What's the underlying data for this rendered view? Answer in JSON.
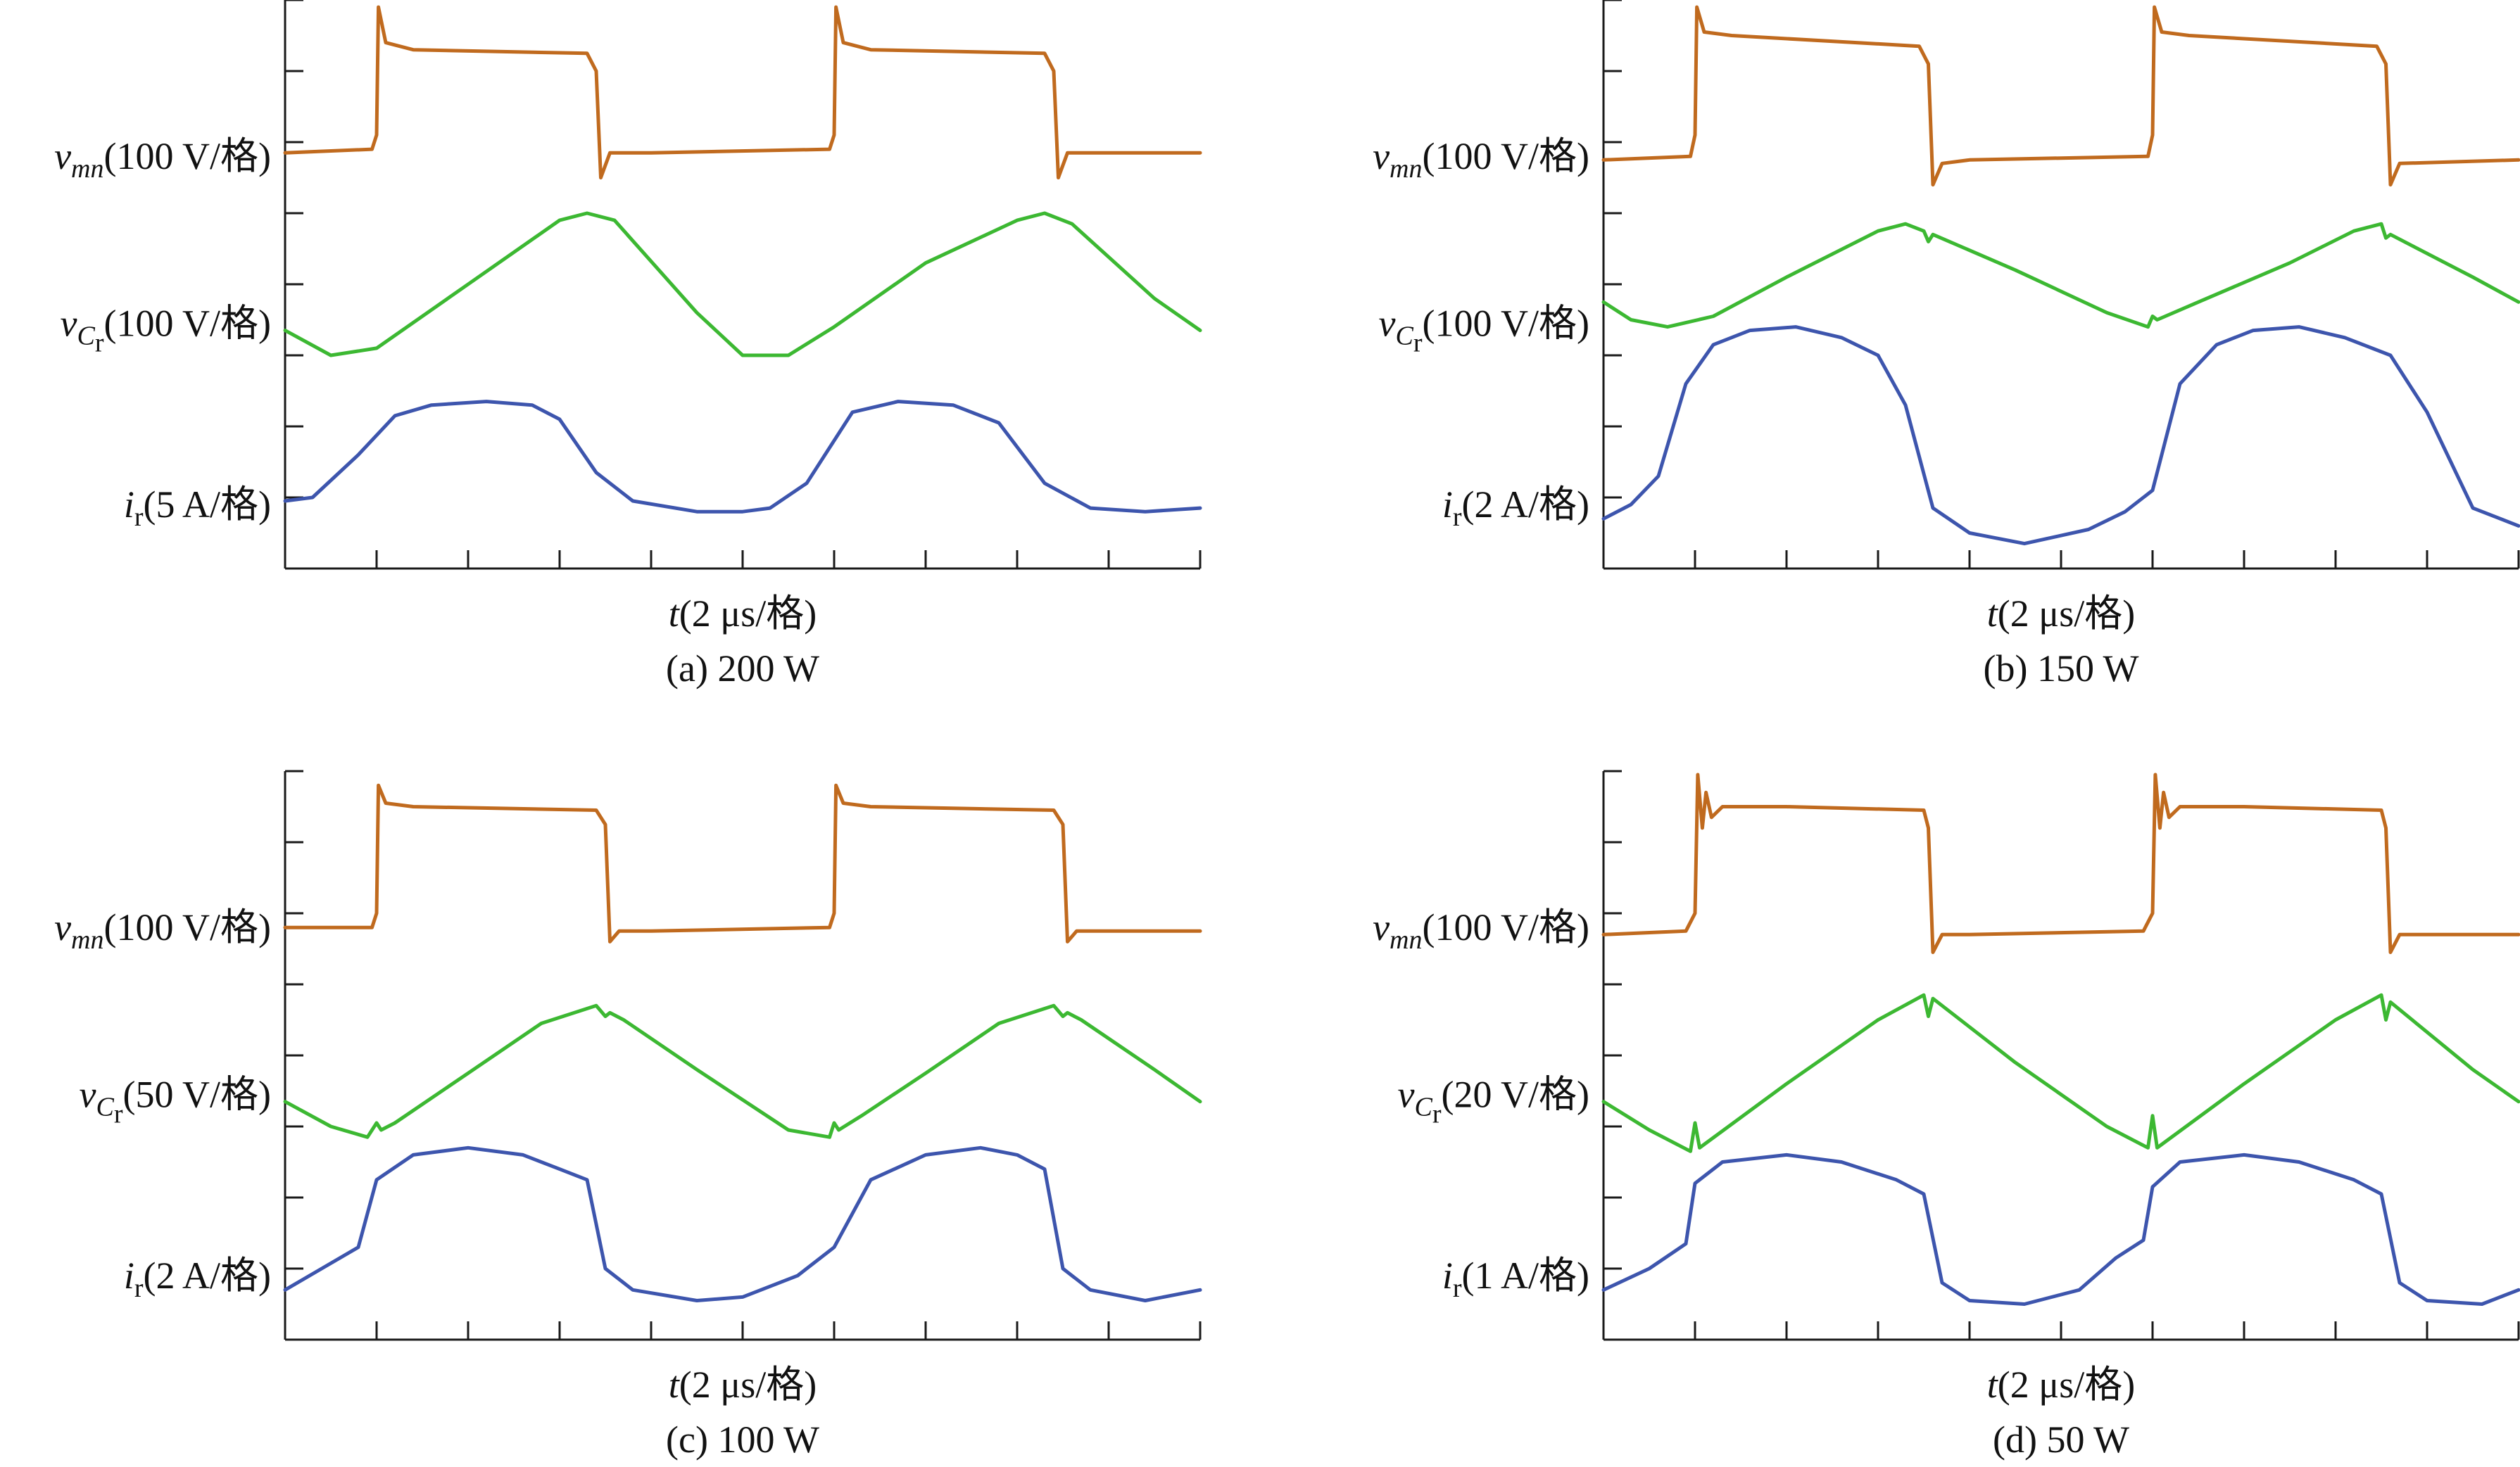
{
  "colors": {
    "vmn": "#c06a1e",
    "vcr": "#3cb832",
    "ir": "#3d55ad"
  },
  "panels": [
    {
      "caption": "(a) 200 W",
      "xlabel": "t(2 μs/格)",
      "labels": {
        "vmn": {
          "sym": "v",
          "sub": "mn",
          "scale": "(100 V/格)"
        },
        "vcr": {
          "sym": "v",
          "sub": "C",
          "subsub": "r",
          "scale": "(100 V/格)"
        },
        "ir": {
          "sym": "i",
          "sub": "r",
          "scale": "(5 A/格)"
        }
      }
    },
    {
      "caption": "(b) 150 W",
      "xlabel": "t(2 μs/格)",
      "labels": {
        "vmn": {
          "sym": "v",
          "sub": "mn",
          "scale": "(100 V/格)"
        },
        "vcr": {
          "sym": "v",
          "sub": "C",
          "subsub": "r",
          "scale": "(100 V/格)"
        },
        "ir": {
          "sym": "i",
          "sub": "r",
          "scale": "(2 A/格)"
        }
      }
    },
    {
      "caption": "(c) 100 W",
      "xlabel": "t(2 μs/格)",
      "labels": {
        "vmn": {
          "sym": "v",
          "sub": "mn",
          "scale": "(100 V/格)"
        },
        "vcr": {
          "sym": "v",
          "sub": "C",
          "subsub": "r",
          "scale": "(50 V/格)"
        },
        "ir": {
          "sym": "i",
          "sub": "r",
          "scale": "(2 A/格)"
        }
      }
    },
    {
      "caption": "(d) 50 W",
      "xlabel": "t(2 μs/格)",
      "labels": {
        "vmn": {
          "sym": "v",
          "sub": "mn",
          "scale": "(100 V/格)"
        },
        "vcr": {
          "sym": "v",
          "sub": "C",
          "subsub": "r",
          "scale": "(20 V/格)"
        },
        "ir": {
          "sym": "i",
          "sub": "r",
          "scale": "(1 A/格)"
        }
      }
    }
  ],
  "chart_data": [
    {
      "type": "line",
      "title": "(a) 200 W",
      "xlabel": "t(2 μs/格)",
      "x_units": "divisions (2 μs/div)",
      "xlim": [
        0,
        10
      ],
      "ylim": [
        0,
        8
      ],
      "series": [
        {
          "name": "vmn(100 V/格)",
          "x": [
            0,
            0.95,
            1.0,
            1.02,
            1.1,
            1.4,
            3.3,
            3.4,
            3.45,
            3.55,
            4.0,
            5.95,
            6.0,
            6.02,
            6.1,
            6.4,
            8.3,
            8.4,
            8.45,
            8.55,
            10.0
          ],
          "y": [
            5.85,
            5.9,
            6.1,
            7.9,
            7.4,
            7.3,
            7.25,
            7.0,
            5.5,
            5.85,
            5.85,
            5.9,
            6.1,
            7.9,
            7.4,
            7.3,
            7.25,
            7.0,
            5.5,
            5.85,
            5.85
          ]
        },
        {
          "name": "vCr(100 V/格)",
          "x": [
            0,
            0.5,
            1.0,
            2.0,
            3.0,
            3.3,
            3.6,
            4.5,
            5.0,
            5.5,
            6.0,
            7.0,
            8.0,
            8.3,
            8.6,
            9.5,
            10.0
          ],
          "y": [
            3.35,
            3.0,
            3.1,
            4.0,
            4.9,
            5.0,
            4.9,
            3.6,
            3.0,
            3.0,
            3.4,
            4.3,
            4.9,
            5.0,
            4.85,
            3.8,
            3.35
          ]
        },
        {
          "name": "ir(5 A/格)",
          "x": [
            0,
            0.3,
            0.8,
            1.2,
            1.6,
            2.2,
            2.7,
            3.0,
            3.4,
            3.8,
            4.5,
            5.0,
            5.3,
            5.7,
            6.2,
            6.7,
            7.3,
            7.8,
            8.3,
            8.8,
            9.4,
            10.0
          ],
          "y": [
            0.95,
            1.0,
            1.6,
            2.15,
            2.3,
            2.35,
            2.3,
            2.1,
            1.35,
            0.95,
            0.8,
            0.8,
            0.85,
            1.2,
            2.2,
            2.35,
            2.3,
            2.05,
            1.2,
            0.85,
            0.8,
            0.85
          ]
        }
      ]
    },
    {
      "type": "line",
      "title": "(b) 150 W",
      "xlabel": "t(2 μs/格)",
      "x_units": "divisions (2 μs/div)",
      "xlim": [
        0,
        10
      ],
      "ylim": [
        0,
        8
      ],
      "series": [
        {
          "name": "vmn(100 V/格)",
          "x": [
            0,
            0.95,
            1.0,
            1.02,
            1.1,
            1.4,
            3.45,
            3.55,
            3.6,
            3.7,
            4.0,
            5.95,
            6.0,
            6.02,
            6.1,
            6.4,
            8.45,
            8.55,
            8.6,
            8.7,
            10.0
          ],
          "y": [
            5.75,
            5.8,
            6.1,
            7.9,
            7.55,
            7.5,
            7.35,
            7.1,
            5.4,
            5.7,
            5.75,
            5.8,
            6.1,
            7.9,
            7.55,
            7.5,
            7.35,
            7.1,
            5.4,
            5.7,
            5.75
          ]
        },
        {
          "name": "vCr(100 V/格)",
          "x": [
            0,
            0.3,
            0.7,
            1.2,
            2.0,
            3.0,
            3.3,
            3.5,
            3.55,
            3.6,
            4.5,
            5.5,
            5.95,
            6.0,
            6.05,
            6.5,
            7.5,
            8.2,
            8.5,
            8.55,
            8.6,
            9.5,
            10.0
          ],
          "y": [
            3.75,
            3.5,
            3.4,
            3.55,
            4.1,
            4.75,
            4.85,
            4.75,
            4.6,
            4.7,
            4.2,
            3.6,
            3.4,
            3.55,
            3.5,
            3.75,
            4.3,
            4.75,
            4.85,
            4.65,
            4.7,
            4.1,
            3.75
          ]
        },
        {
          "name": "ir(2 A/格)",
          "x": [
            0,
            0.3,
            0.6,
            0.9,
            1.2,
            1.6,
            2.1,
            2.6,
            3.0,
            3.3,
            3.6,
            4.0,
            4.6,
            5.3,
            5.7,
            6.0,
            6.3,
            6.7,
            7.1,
            7.6,
            8.1,
            8.6,
            9.0,
            9.5,
            10.0
          ],
          "y": [
            0.7,
            0.9,
            1.3,
            2.6,
            3.15,
            3.35,
            3.4,
            3.25,
            3.0,
            2.3,
            0.85,
            0.5,
            0.35,
            0.55,
            0.8,
            1.1,
            2.6,
            3.15,
            3.35,
            3.4,
            3.25,
            3.0,
            2.2,
            0.85,
            0.6
          ]
        }
      ]
    },
    {
      "type": "line",
      "title": "(c) 100 W",
      "xlabel": "t(2 μs/格)",
      "x_units": "divisions (2 μs/div)",
      "xlim": [
        0,
        10
      ],
      "ylim": [
        0,
        8
      ],
      "series": [
        {
          "name": "vmn(100 V/格)",
          "x": [
            0,
            0.95,
            1.0,
            1.02,
            1.1,
            1.4,
            3.4,
            3.5,
            3.55,
            3.65,
            4.0,
            5.95,
            6.0,
            6.02,
            6.1,
            6.4,
            8.4,
            8.5,
            8.55,
            8.65,
            10.0
          ],
          "y": [
            5.8,
            5.8,
            6.0,
            7.8,
            7.55,
            7.5,
            7.45,
            7.25,
            5.6,
            5.75,
            5.75,
            5.8,
            6.0,
            7.8,
            7.55,
            7.5,
            7.45,
            7.25,
            5.6,
            5.75,
            5.75
          ]
        },
        {
          "name": "vCr(50 V/格)",
          "x": [
            0,
            0.5,
            0.9,
            1.0,
            1.05,
            1.2,
            2.0,
            2.8,
            3.4,
            3.5,
            3.55,
            3.7,
            4.5,
            5.5,
            5.95,
            6.0,
            6.05,
            6.3,
            7.0,
            7.8,
            8.4,
            8.5,
            8.55,
            8.7,
            9.5,
            10.0
          ],
          "y": [
            3.35,
            3.0,
            2.85,
            3.05,
            2.95,
            3.05,
            3.75,
            4.45,
            4.7,
            4.55,
            4.6,
            4.5,
            3.8,
            2.95,
            2.85,
            3.05,
            2.95,
            3.15,
            3.75,
            4.45,
            4.7,
            4.55,
            4.6,
            4.5,
            3.8,
            3.35
          ]
        },
        {
          "name": "ir(2 A/格)",
          "x": [
            0,
            0.4,
            0.8,
            1.0,
            1.4,
            2.0,
            2.6,
            3.0,
            3.3,
            3.5,
            3.8,
            4.5,
            5.0,
            5.6,
            6.0,
            6.4,
            7.0,
            7.6,
            8.0,
            8.3,
            8.5,
            8.8,
            9.4,
            10.0
          ],
          "y": [
            0.7,
            1.0,
            1.3,
            2.25,
            2.6,
            2.7,
            2.6,
            2.4,
            2.25,
            1.0,
            0.7,
            0.55,
            0.6,
            0.9,
            1.3,
            2.25,
            2.6,
            2.7,
            2.6,
            2.4,
            1.0,
            0.7,
            0.55,
            0.7
          ]
        }
      ]
    },
    {
      "type": "line",
      "title": "(d) 50 W",
      "xlabel": "t(2 μs/格)",
      "x_units": "divisions (2 μs/div)",
      "xlim": [
        0,
        10
      ],
      "ylim": [
        0,
        8
      ],
      "series": [
        {
          "name": "vmn(100 V/格)",
          "x": [
            0,
            0.9,
            1.0,
            1.03,
            1.08,
            1.12,
            1.18,
            1.3,
            2.0,
            3.5,
            3.55,
            3.6,
            3.7,
            4.0,
            5.9,
            6.0,
            6.03,
            6.08,
            6.12,
            6.18,
            6.3,
            7.0,
            8.5,
            8.55,
            8.6,
            8.7,
            10.0
          ],
          "y": [
            5.7,
            5.75,
            6.0,
            7.95,
            7.2,
            7.7,
            7.35,
            7.5,
            7.5,
            7.45,
            7.2,
            5.45,
            5.7,
            5.7,
            5.75,
            6.0,
            7.95,
            7.2,
            7.7,
            7.35,
            7.5,
            7.5,
            7.45,
            7.2,
            5.45,
            5.7,
            5.7
          ]
        },
        {
          "name": "vCr(20 V/格)",
          "x": [
            0,
            0.5,
            0.95,
            1.0,
            1.05,
            2.0,
            3.0,
            3.5,
            3.55,
            3.6,
            4.5,
            5.5,
            5.95,
            6.0,
            6.05,
            7.0,
            8.0,
            8.5,
            8.55,
            8.6,
            9.5,
            10.0
          ],
          "y": [
            3.35,
            2.95,
            2.65,
            3.05,
            2.7,
            3.6,
            4.5,
            4.85,
            4.55,
            4.8,
            3.9,
            3.0,
            2.7,
            3.15,
            2.7,
            3.6,
            4.5,
            4.85,
            4.5,
            4.75,
            3.8,
            3.35
          ]
        },
        {
          "name": "ir(1 A/格)",
          "x": [
            0,
            0.5,
            0.9,
            1.0,
            1.3,
            2.0,
            2.6,
            3.2,
            3.5,
            3.7,
            4.0,
            4.6,
            5.2,
            5.6,
            5.9,
            6.0,
            6.3,
            7.0,
            7.6,
            8.2,
            8.5,
            8.7,
            9.0,
            9.6,
            10.0
          ],
          "y": [
            0.7,
            1.0,
            1.35,
            2.2,
            2.5,
            2.6,
            2.5,
            2.25,
            2.05,
            0.8,
            0.55,
            0.5,
            0.7,
            1.15,
            1.4,
            2.15,
            2.5,
            2.6,
            2.5,
            2.25,
            2.05,
            0.8,
            0.55,
            0.5,
            0.7
          ]
        }
      ]
    }
  ]
}
